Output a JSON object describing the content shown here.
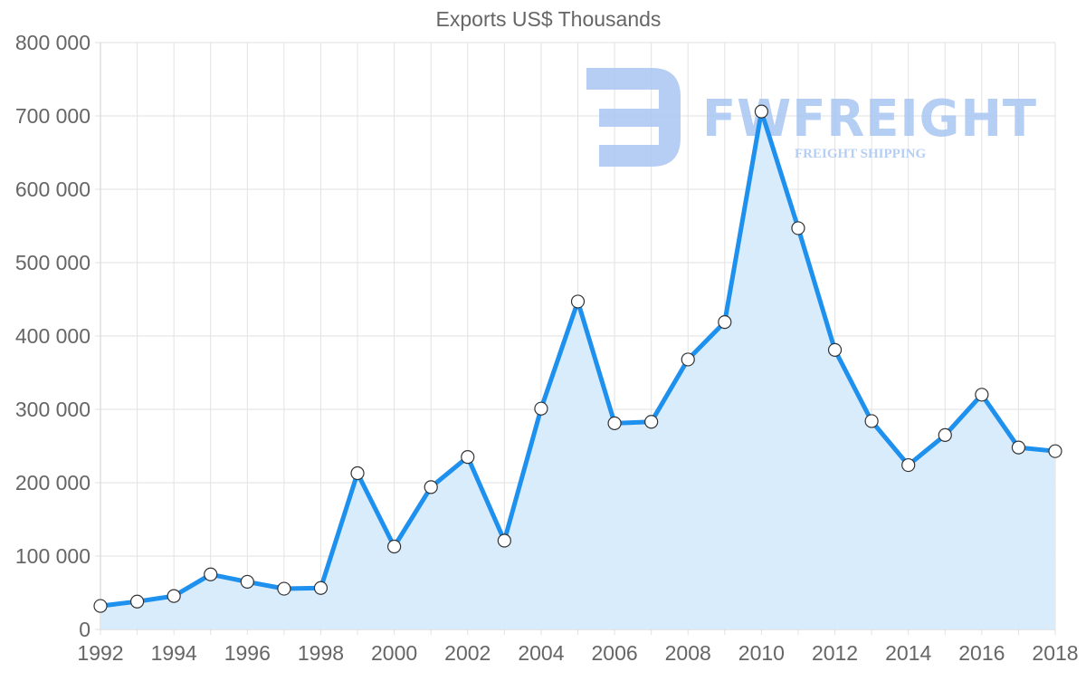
{
  "chart_data": {
    "type": "line",
    "title": "Exports US$ Thousands",
    "xlabel": "",
    "ylabel": "",
    "ylim": [
      0,
      800000
    ],
    "yticks": [
      "0",
      "100 000",
      "200 000",
      "300 000",
      "400 000",
      "500 000",
      "600 000",
      "700 000",
      "800 000"
    ],
    "xticks": [
      "1992",
      "1994",
      "1996",
      "1998",
      "2000",
      "2002",
      "2004",
      "2006",
      "2008",
      "2010",
      "2012",
      "2014",
      "2016",
      "2018"
    ],
    "grid": true,
    "legend": null,
    "x": [
      1992,
      1993,
      1994,
      1995,
      1996,
      1997,
      1998,
      1999,
      2000,
      2001,
      2002,
      2003,
      2004,
      2005,
      2006,
      2007,
      2008,
      2009,
      2010,
      2011,
      2012,
      2013,
      2014,
      2015,
      2016,
      2017,
      2018
    ],
    "series": [
      {
        "name": "Exports US$ Thousands",
        "values": [
          32000,
          38000,
          45500,
          75000,
          65000,
          55500,
          56500,
          213000,
          113000,
          194000,
          235000,
          121000,
          301000,
          447000,
          281000,
          283000,
          368000,
          419000,
          706000,
          547000,
          381000,
          284000,
          224000,
          265000,
          320000,
          248000,
          243000
        ]
      }
    ],
    "colors": {
      "line": "#1E90EE",
      "fill": "#D6EBFC",
      "point_fill": "#ffffff",
      "point_stroke": "#333333",
      "grid": "#E2E2E2"
    }
  },
  "watermark": {
    "brand": "FWFREIGHT",
    "tagline": "FREIGHT SHIPPING",
    "color": "#A9C6F2"
  }
}
